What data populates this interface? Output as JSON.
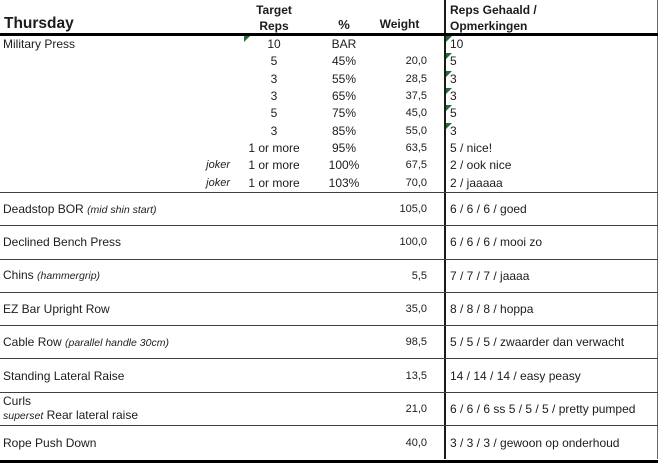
{
  "colors": {
    "triangle_indicator": "#1e6e32",
    "grid_line": "#3f3f3f",
    "heavy_line": "#000000"
  },
  "header": {
    "day": "Thursday",
    "target_line1": "Target",
    "target_line2": "Reps",
    "pct": "%",
    "weight": "Weight",
    "reps_line1": "Reps Gehaald /",
    "reps_line2": "Opmerkingen"
  },
  "military": {
    "name": "Military Press",
    "sets": [
      {
        "joker": "",
        "target": "10",
        "pct": "BAR",
        "weight": "",
        "reps": "10"
      },
      {
        "joker": "",
        "target": "5",
        "pct": "45%",
        "weight": "20,0",
        "reps": "5"
      },
      {
        "joker": "",
        "target": "3",
        "pct": "55%",
        "weight": "28,5",
        "reps": "3"
      },
      {
        "joker": "",
        "target": "3",
        "pct": "65%",
        "weight": "37,5",
        "reps": "3"
      },
      {
        "joker": "",
        "target": "5",
        "pct": "75%",
        "weight": "45,0",
        "reps": "5"
      },
      {
        "joker": "",
        "target": "3",
        "pct": "85%",
        "weight": "55,0",
        "reps": "3"
      },
      {
        "joker": "",
        "target": "1 or more",
        "pct": "95%",
        "weight": "63,5",
        "reps": "5 / nice!"
      },
      {
        "joker": "joker",
        "target": "1 or more",
        "pct": "100%",
        "weight": "67,5",
        "reps": "2 / ook nice"
      },
      {
        "joker": "joker",
        "target": "1 or more",
        "pct": "103%",
        "weight": "70,0",
        "reps": "2 / jaaaaa"
      }
    ]
  },
  "exercises": [
    {
      "name": "Deadstop BOR",
      "note": "(mid shin start)",
      "weight": "105,0",
      "reps": "6 / 6 / 6 / goed"
    },
    {
      "name": "Declined Bench Press",
      "note": "",
      "weight": "100,0",
      "reps": "6 / 6 / 6 / mooi zo"
    },
    {
      "name": "Chins",
      "note": "(hammergrip)",
      "weight": "5,5",
      "reps": "7 / 7 / 7 / jaaaa"
    },
    {
      "name": "EZ Bar Upright Row",
      "note": "",
      "weight": "35,0",
      "reps": "8 / 8 / 8 / hoppa"
    },
    {
      "name": "Cable Row",
      "note": "(parallel handle 30cm)",
      "weight": "98,5",
      "reps": "5 / 5 / 5 / zwaarder dan verwacht"
    },
    {
      "name": "Standing Lateral Raise",
      "note": "",
      "weight": "13,5",
      "reps": "14 / 14 / 14 / easy peasy"
    },
    {
      "name": "Curls",
      "note": "",
      "superset_label": "superset",
      "superset_text": " Rear lateral raise",
      "weight": "21,0",
      "reps": "6 / 6 / 6 ss 5 / 5 / 5 / pretty pumped"
    },
    {
      "name": "Rope Push Down",
      "note": "",
      "weight": "40,0",
      "reps": "3 / 3 / 3 / gewoon op onderhoud"
    }
  ]
}
